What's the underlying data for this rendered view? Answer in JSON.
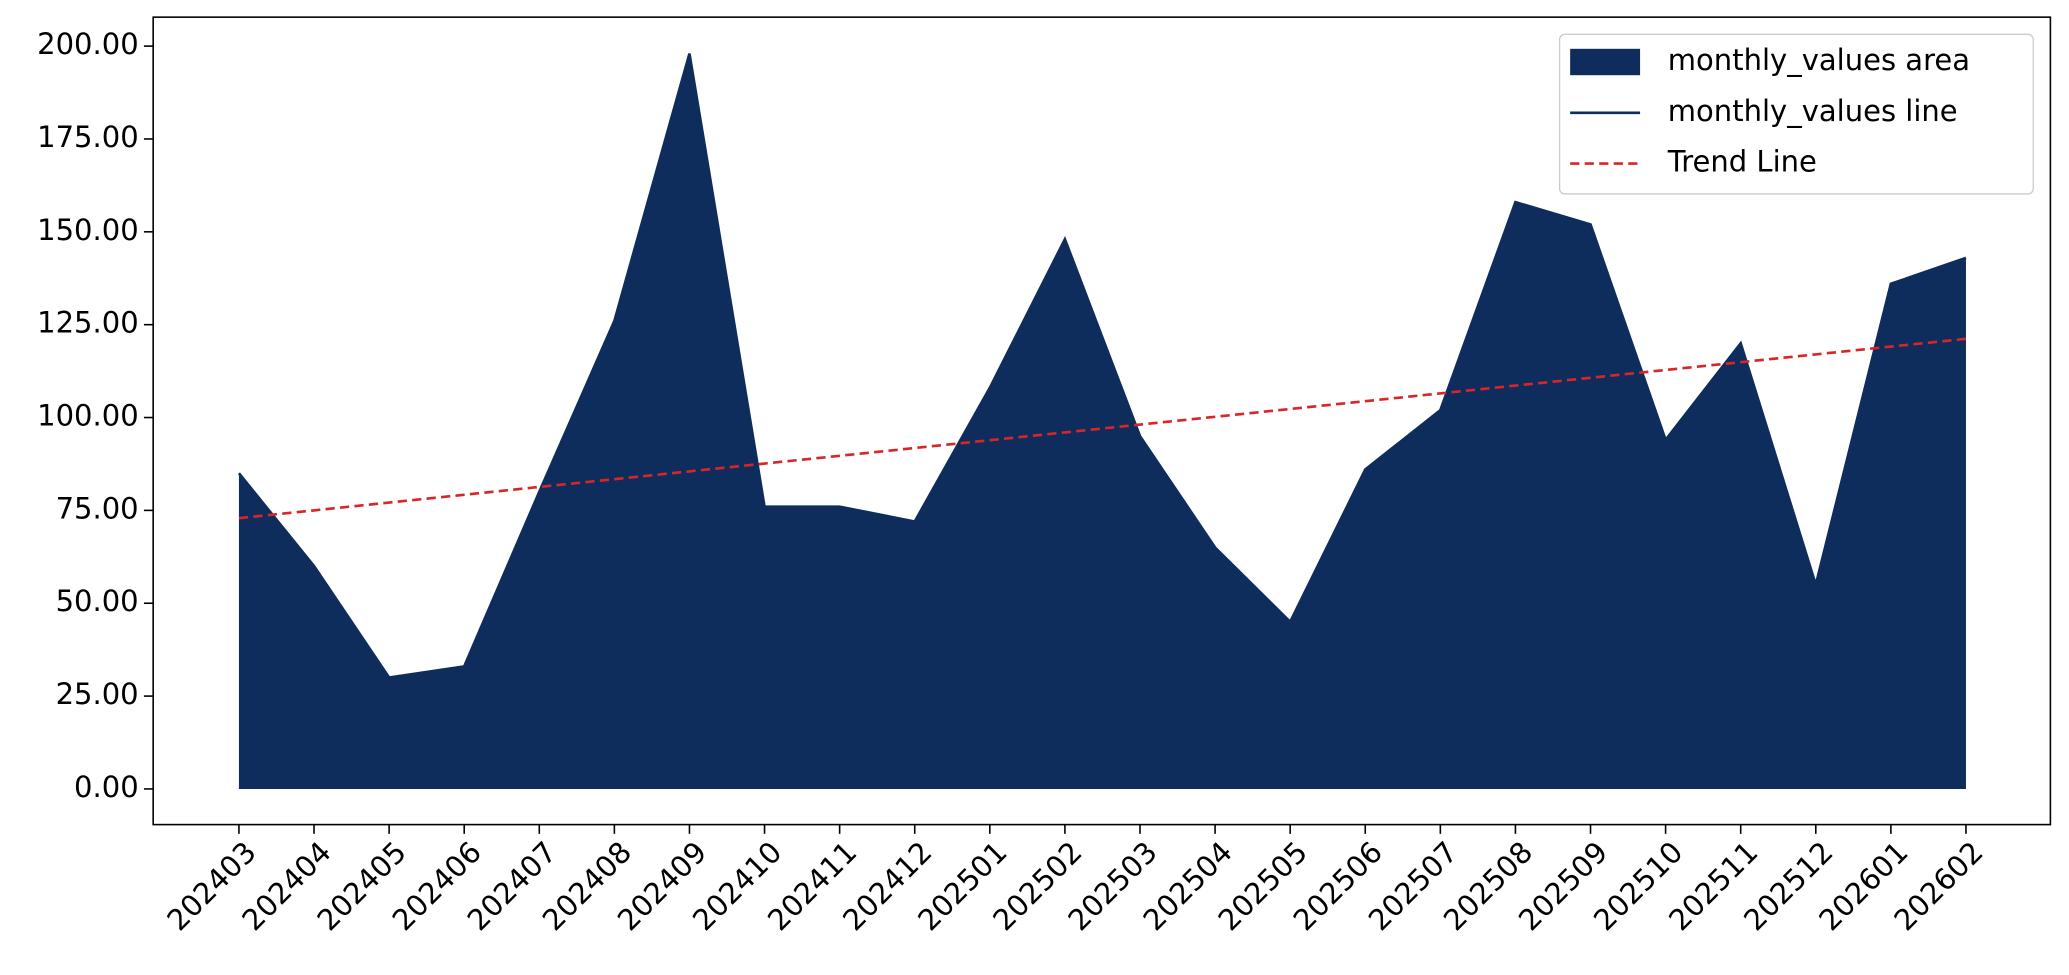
{
  "chart_data": {
    "type": "area",
    "categories": [
      "202403",
      "202404",
      "202405",
      "202406",
      "202407",
      "202408",
      "202409",
      "202410",
      "202411",
      "202412",
      "202501",
      "202502",
      "202503",
      "202504",
      "202505",
      "202506",
      "202507",
      "202508",
      "202509",
      "202510",
      "202511",
      "202512",
      "202601",
      "202602"
    ],
    "series": [
      {
        "name": "monthly_values area",
        "kind": "area",
        "color": "#0e2c5c",
        "values": [
          85,
          60,
          30,
          33,
          80,
          126,
          198,
          76,
          76,
          72,
          108,
          148,
          95,
          65,
          45,
          86,
          102,
          158,
          152,
          94,
          120,
          55,
          136,
          143
        ]
      },
      {
        "name": "monthly_values line",
        "kind": "line",
        "color": "#0e2c5c",
        "values": [
          85,
          60,
          30,
          33,
          80,
          126,
          198,
          76,
          76,
          72,
          108,
          148,
          95,
          65,
          45,
          86,
          102,
          158,
          152,
          94,
          120,
          55,
          136,
          143
        ]
      },
      {
        "name": "Trend Line",
        "kind": "dashed",
        "color": "#d62728",
        "values": [
          72.9,
          75.0,
          77.1,
          79.2,
          81.3,
          83.4,
          85.5,
          87.6,
          89.7,
          91.8,
          93.9,
          96.0,
          98.1,
          100.2,
          102.3,
          104.4,
          106.5,
          108.6,
          110.7,
          112.8,
          114.9,
          117.0,
          119.1,
          121.2
        ]
      }
    ],
    "ylim": [
      -9.6,
      207.8
    ],
    "yticks": [
      {
        "value": 0,
        "label": "0.00"
      },
      {
        "value": 25,
        "label": "25.00"
      },
      {
        "value": 50,
        "label": "50.00"
      },
      {
        "value": 75,
        "label": "75.00"
      },
      {
        "value": 100,
        "label": "100.00"
      },
      {
        "value": 125,
        "label": "125.00"
      },
      {
        "value": 150,
        "label": "150.00"
      },
      {
        "value": 175,
        "label": "175.00"
      },
      {
        "value": 200,
        "label": "200.00"
      }
    ],
    "legend": "upper right",
    "grid": false
  }
}
